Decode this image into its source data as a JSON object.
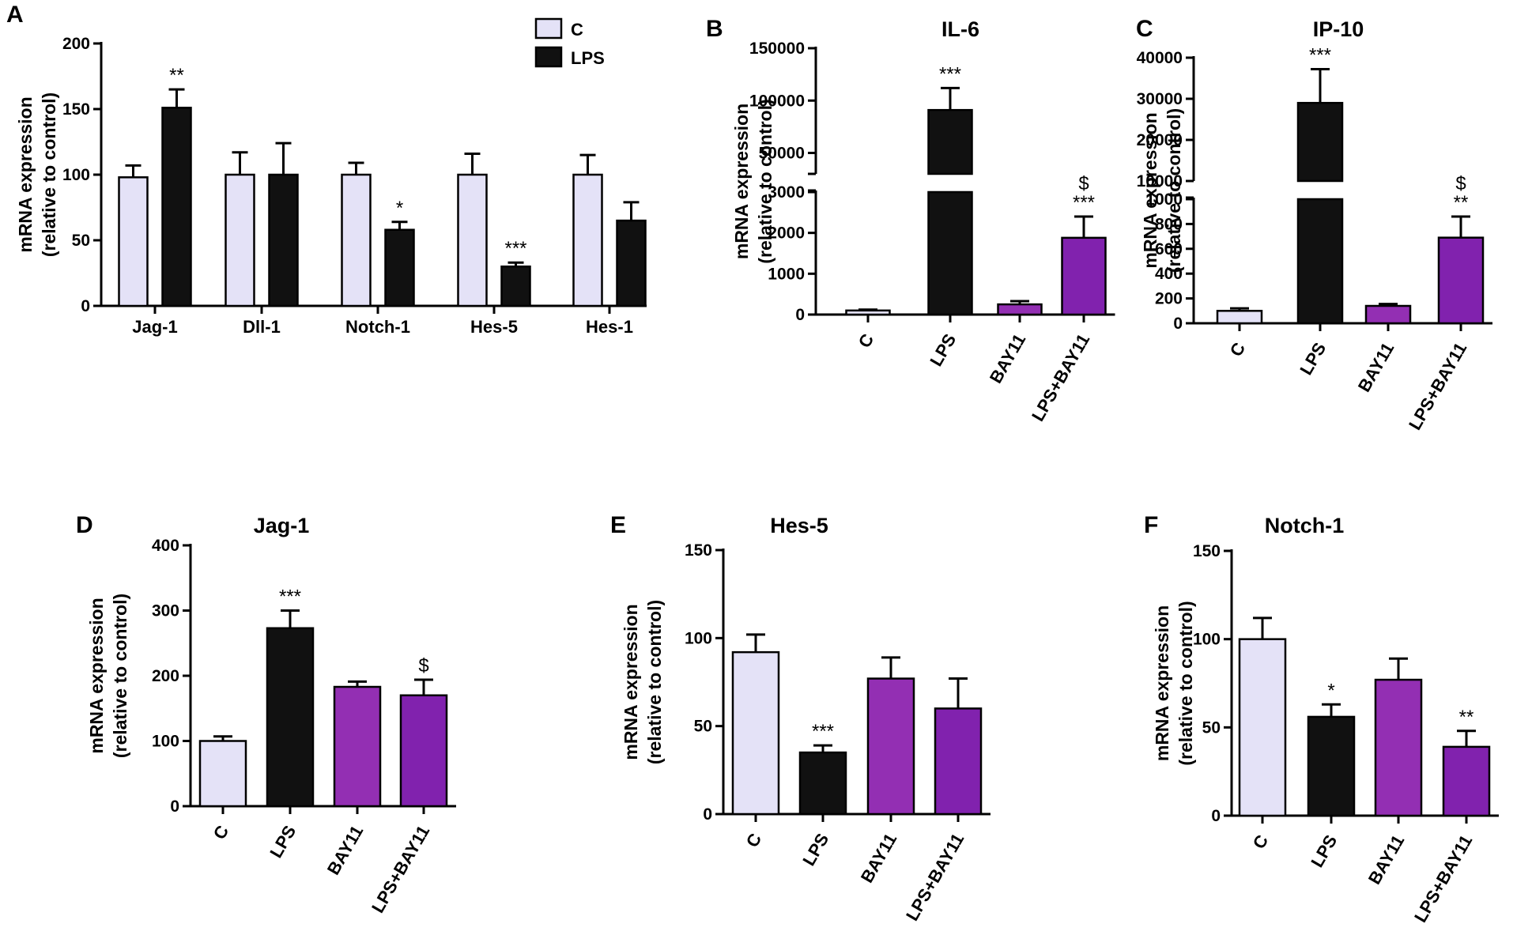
{
  "colors": {
    "C": "#e4e2f7",
    "LPS": "#111111",
    "BAY11": "#932fb3",
    "LPS+BAY11": "#8122ae"
  },
  "y_axis_label": [
    "mRNA expression",
    "(relative to control)"
  ],
  "chart_data": [
    {
      "id": "A",
      "panel_label": "A",
      "title": "",
      "type": "bar",
      "categories": [
        "Jag-1",
        "Dll-1",
        "Notch-1",
        "Hes-5",
        "Hes-1"
      ],
      "series": [
        {
          "name": "C",
          "values": [
            98,
            100,
            100,
            100,
            100
          ],
          "errors": [
            9,
            17,
            9,
            16,
            15
          ]
        },
        {
          "name": "LPS",
          "values": [
            151,
            100,
            58,
            30,
            65
          ],
          "errors": [
            14,
            24,
            6,
            3,
            14
          ]
        }
      ],
      "annotations": [
        {
          "series": 1,
          "category": 0,
          "text": "**"
        },
        {
          "series": 1,
          "category": 2,
          "text": "*"
        },
        {
          "series": 1,
          "category": 3,
          "text": "***"
        }
      ],
      "ylim": [
        0,
        200
      ],
      "yticks": [
        0,
        50,
        100,
        150,
        200
      ],
      "legend": [
        "C",
        "LPS"
      ],
      "legend_position": "top-right"
    },
    {
      "id": "B",
      "panel_label": "B",
      "title": "IL-6",
      "type": "bar",
      "broken_axis": true,
      "categories": [
        "C",
        "LPS",
        "BAY11",
        "LPS+BAY11"
      ],
      "values": [
        100,
        91000,
        250,
        1880
      ],
      "errors": [
        20,
        21000,
        80,
        520
      ],
      "annotations": [
        {
          "category": 1,
          "text": "***"
        },
        {
          "category": 3,
          "text": "***"
        },
        {
          "category": 3,
          "text": "$"
        }
      ],
      "ylim_lower": [
        0,
        3000
      ],
      "ylim_upper": [
        30000,
        150000
      ],
      "yticks_lower": [
        0,
        1000,
        2000,
        3000
      ],
      "yticks_upper": [
        50000,
        100000,
        150000
      ]
    },
    {
      "id": "C",
      "panel_label": "C",
      "title": "IP-10",
      "type": "bar",
      "broken_axis": true,
      "categories": [
        "C",
        "LPS",
        "BAY11",
        "LPS+BAY11"
      ],
      "values": [
        100,
        29000,
        140,
        690
      ],
      "errors": [
        20,
        8200,
        15,
        170
      ],
      "annotations": [
        {
          "category": 1,
          "text": "***"
        },
        {
          "category": 3,
          "text": "**"
        },
        {
          "category": 3,
          "text": "$"
        }
      ],
      "ylim_lower": [
        0,
        1000
      ],
      "ylim_upper": [
        10000,
        40000
      ],
      "yticks_lower": [
        0,
        200,
        400,
        600,
        800,
        1000
      ],
      "yticks_upper": [
        10000,
        20000,
        30000,
        40000
      ]
    },
    {
      "id": "D",
      "panel_label": "D",
      "title": "Jag-1",
      "type": "bar",
      "categories": [
        "C",
        "LPS",
        "BAY11",
        "LPS+BAY11"
      ],
      "values": [
        100,
        273,
        183,
        170
      ],
      "errors": [
        7,
        27,
        8,
        24
      ],
      "annotations": [
        {
          "category": 1,
          "text": "***"
        },
        {
          "category": 3,
          "text": "$"
        }
      ],
      "ylim": [
        0,
        400
      ],
      "yticks": [
        0,
        100,
        200,
        300,
        400
      ]
    },
    {
      "id": "E",
      "panel_label": "E",
      "title": "Hes-5",
      "type": "bar",
      "categories": [
        "C",
        "LPS",
        "BAY11",
        "LPS+BAY11"
      ],
      "values": [
        92,
        35,
        77,
        60
      ],
      "errors": [
        10,
        4,
        12,
        17
      ],
      "annotations": [
        {
          "category": 1,
          "text": "***"
        }
      ],
      "ylim": [
        0,
        150
      ],
      "yticks": [
        0,
        50,
        100,
        150
      ]
    },
    {
      "id": "F",
      "panel_label": "F",
      "title": "Notch-1",
      "type": "bar",
      "categories": [
        "C",
        "LPS",
        "BAY11",
        "LPS+BAY11"
      ],
      "values": [
        100,
        56,
        77,
        39
      ],
      "errors": [
        12,
        7,
        12,
        9
      ],
      "annotations": [
        {
          "category": 1,
          "text": "*"
        },
        {
          "category": 3,
          "text": "**"
        }
      ],
      "ylim": [
        0,
        150
      ],
      "yticks": [
        0,
        50,
        100,
        150
      ]
    }
  ]
}
